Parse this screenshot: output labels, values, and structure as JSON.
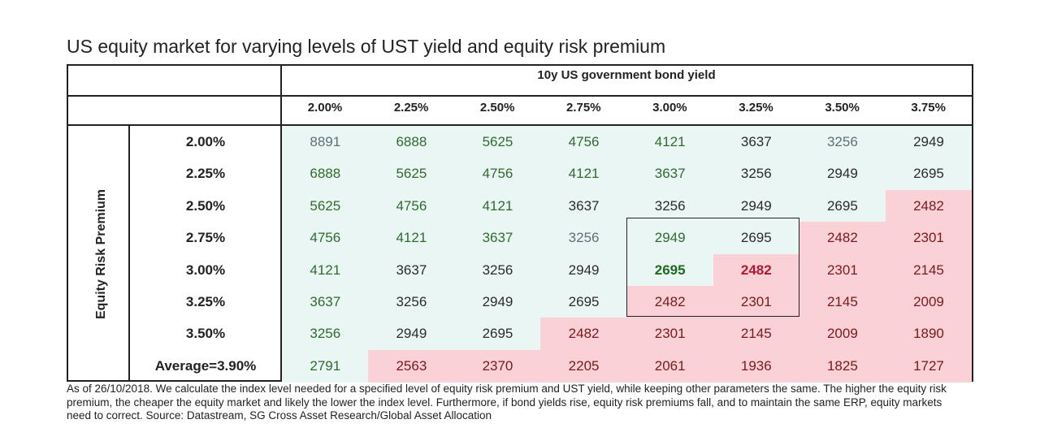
{
  "chart_data": {
    "type": "table",
    "title": "US equity market for varying levels of UST yield and equity risk premium",
    "column_header": "10y US government bond yield",
    "row_header": "Equity Risk Premium",
    "columns": [
      "2.00%",
      "2.25%",
      "2.50%",
      "2.75%",
      "3.00%",
      "3.25%",
      "3.50%",
      "3.75%"
    ],
    "rows": [
      "2.00%",
      "2.25%",
      "2.50%",
      "2.75%",
      "3.00%",
      "3.25%",
      "3.50%",
      "Average=3.90%"
    ],
    "values": [
      [
        8891,
        6888,
        5625,
        4756,
        4121,
        3637,
        3256,
        2949
      ],
      [
        6888,
        5625,
        4756,
        4121,
        3637,
        3256,
        2949,
        2695
      ],
      [
        5625,
        4756,
        4121,
        3637,
        3256,
        2949,
        2695,
        2482
      ],
      [
        4756,
        4121,
        3637,
        3256,
        2949,
        2695,
        2482,
        2301
      ],
      [
        4121,
        3637,
        3256,
        2949,
        2695,
        2482,
        2301,
        2145
      ],
      [
        3637,
        3256,
        2949,
        2695,
        2482,
        2301,
        2145,
        2009
      ],
      [
        3256,
        2949,
        2695,
        2482,
        2301,
        2145,
        2009,
        1890
      ],
      [
        2791,
        2563,
        2370,
        2205,
        2061,
        1936,
        1825,
        1727
      ]
    ],
    "cell_shading": [
      [
        "blue",
        "blue",
        "blue",
        "blue",
        "blue",
        "blue",
        "blue",
        "blue"
      ],
      [
        "blue",
        "blue",
        "blue",
        "blue",
        "blue",
        "blue",
        "blue",
        "blue"
      ],
      [
        "blue",
        "blue",
        "blue",
        "blue",
        "blue",
        "blue",
        "blue",
        "pink"
      ],
      [
        "blue",
        "blue",
        "blue",
        "blue",
        "blue",
        "blue",
        "pink",
        "pink"
      ],
      [
        "blue",
        "blue",
        "blue",
        "blue",
        "blue",
        "pink",
        "pink",
        "pink"
      ],
      [
        "blue",
        "blue",
        "blue",
        "blue",
        "pink",
        "pink",
        "pink",
        "pink"
      ],
      [
        "blue",
        "blue",
        "blue",
        "pink",
        "pink",
        "pink",
        "pink",
        "pink"
      ],
      [
        "blue",
        "pink",
        "pink",
        "pink",
        "pink",
        "pink",
        "pink",
        "pink"
      ]
    ],
    "text_colors": [
      [
        "gray",
        "green",
        "green",
        "green",
        "green",
        "dark",
        "gray",
        "dark"
      ],
      [
        "green",
        "green",
        "green",
        "green",
        "green",
        "dark",
        "dark",
        "dark"
      ],
      [
        "green",
        "green",
        "green",
        "dark",
        "dark",
        "dark",
        "dark",
        "red"
      ],
      [
        "green",
        "green",
        "green",
        "gray",
        "green",
        "dark",
        "red",
        "red"
      ],
      [
        "green",
        "dark",
        "dark",
        "dark",
        "bold-green",
        "bold-red",
        "red",
        "red"
      ],
      [
        "green",
        "dark",
        "dark",
        "dark",
        "red",
        "red",
        "red",
        "red"
      ],
      [
        "green",
        "dark",
        "dark",
        "red",
        "red",
        "red",
        "red",
        "red"
      ],
      [
        "green",
        "red",
        "red",
        "red",
        "red",
        "red",
        "red",
        "red"
      ]
    ],
    "highlight_box": {
      "rows": [
        3,
        5
      ],
      "cols": [
        4,
        5
      ]
    },
    "colors": {
      "blue_fill": "#eaf6f3",
      "pink_fill": "#fad1d7"
    }
  },
  "note": "As of 26/10/2018. We calculate the index level needed for a specified level of equity risk premium and UST yield, while keeping other parameters the same. The higher the equity risk premium, the cheaper the equity market and likely the lower the index level. Furthermore, if bond yields rise, equity risk premiums fall, and to maintain the same ERP, equity markets need to correct. Source: Datastream, SG Cross Asset Research/Global Asset Allocation"
}
